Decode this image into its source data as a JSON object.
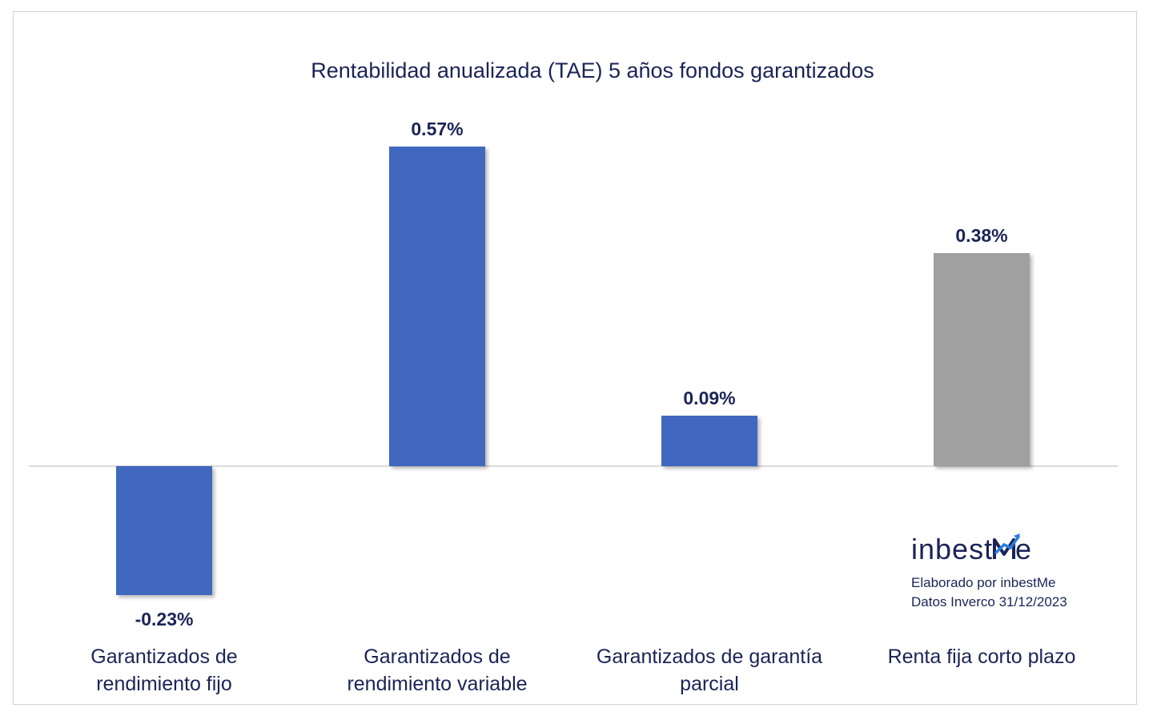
{
  "chart_data": {
    "type": "bar",
    "title": "Rentabilidad anualizada (TAE) 5 años fondos garantizados",
    "categories": [
      [
        "Garantizados de",
        "rendimiento fijo"
      ],
      [
        "Garantizados de",
        "rendimiento variable"
      ],
      [
        "Garantizados de garantía",
        "parcial"
      ],
      [
        "Renta fija corto plazo"
      ]
    ],
    "values": [
      -0.23,
      0.57,
      0.09,
      0.38
    ],
    "data_labels": [
      "-0.23%",
      "0.57%",
      "0.09%",
      "0.38%"
    ],
    "bar_colors": [
      "#3f67be",
      "#3f67be",
      "#3f67be",
      "#a0a0a0"
    ],
    "ylim": [
      -0.23,
      0.57
    ],
    "grid": false,
    "legend": "none",
    "xlabel": "",
    "ylabel": ""
  },
  "branding": {
    "logo_text": "inbestMe",
    "credit_line1": "Elaborado por inbestMe",
    "credit_line2": "Datos Inverco 31/12/2023"
  },
  "colors": {
    "title_text": "#1a2456",
    "label_text": "#1a2456",
    "axis_line": "#d0d0d0",
    "logo_accent": "#2a7de1"
  }
}
